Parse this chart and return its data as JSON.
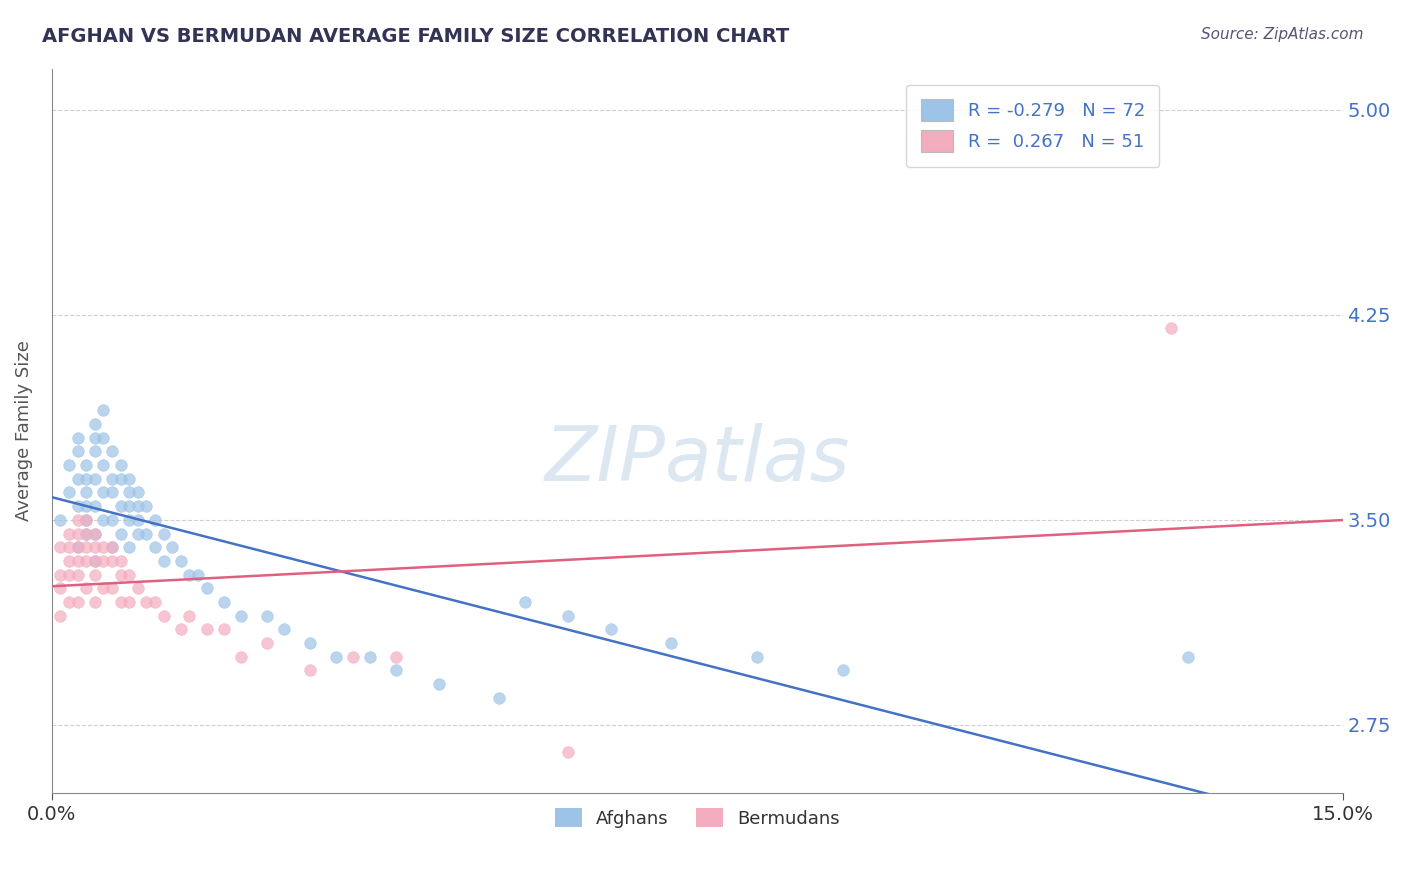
{
  "title": "AFGHAN VS BERMUDAN AVERAGE FAMILY SIZE CORRELATION CHART",
  "source_text": "Source: ZipAtlas.com",
  "ylabel": "Average Family Size",
  "xlim": [
    0.0,
    0.15
  ],
  "ylim": [
    2.5,
    5.15
  ],
  "yticks": [
    2.75,
    3.5,
    4.25,
    5.0
  ],
  "xticks": [
    0.0,
    0.15
  ],
  "xticklabels": [
    "0.0%",
    "15.0%"
  ],
  "background_color": "#ffffff",
  "grid_color": "#d0d0d0",
  "watermark": "ZIPatlas",
  "afghans_color": "#9dc3e6",
  "bermudans_color": "#f4acbf",
  "trend_afghan_color": "#4472c4",
  "trend_bermudan_color": "#e06080",
  "afghan_R": -0.279,
  "afghan_N": 72,
  "bermudan_R": 0.267,
  "bermudan_N": 51,
  "afghan_x": [
    0.001,
    0.002,
    0.002,
    0.003,
    0.003,
    0.003,
    0.003,
    0.003,
    0.004,
    0.004,
    0.004,
    0.004,
    0.004,
    0.004,
    0.005,
    0.005,
    0.005,
    0.005,
    0.005,
    0.005,
    0.005,
    0.006,
    0.006,
    0.006,
    0.006,
    0.006,
    0.007,
    0.007,
    0.007,
    0.007,
    0.007,
    0.008,
    0.008,
    0.008,
    0.008,
    0.009,
    0.009,
    0.009,
    0.009,
    0.009,
    0.01,
    0.01,
    0.01,
    0.01,
    0.011,
    0.011,
    0.012,
    0.012,
    0.013,
    0.013,
    0.014,
    0.015,
    0.016,
    0.017,
    0.018,
    0.02,
    0.022,
    0.025,
    0.027,
    0.03,
    0.033,
    0.037,
    0.04,
    0.045,
    0.052,
    0.055,
    0.06,
    0.065,
    0.072,
    0.082,
    0.092,
    0.132
  ],
  "afghan_y": [
    3.5,
    3.6,
    3.7,
    3.8,
    3.75,
    3.65,
    3.55,
    3.4,
    3.7,
    3.65,
    3.6,
    3.55,
    3.5,
    3.45,
    3.85,
    3.8,
    3.75,
    3.65,
    3.55,
    3.45,
    3.35,
    3.9,
    3.8,
    3.7,
    3.6,
    3.5,
    3.75,
    3.65,
    3.6,
    3.5,
    3.4,
    3.7,
    3.65,
    3.55,
    3.45,
    3.65,
    3.6,
    3.55,
    3.5,
    3.4,
    3.6,
    3.55,
    3.5,
    3.45,
    3.55,
    3.45,
    3.5,
    3.4,
    3.45,
    3.35,
    3.4,
    3.35,
    3.3,
    3.3,
    3.25,
    3.2,
    3.15,
    3.15,
    3.1,
    3.05,
    3.0,
    3.0,
    2.95,
    2.9,
    2.85,
    3.2,
    3.15,
    3.1,
    3.05,
    3.0,
    2.95,
    3.0
  ],
  "bermudan_x": [
    0.001,
    0.001,
    0.001,
    0.001,
    0.002,
    0.002,
    0.002,
    0.002,
    0.002,
    0.003,
    0.003,
    0.003,
    0.003,
    0.003,
    0.003,
    0.004,
    0.004,
    0.004,
    0.004,
    0.004,
    0.005,
    0.005,
    0.005,
    0.005,
    0.005,
    0.006,
    0.006,
    0.006,
    0.007,
    0.007,
    0.007,
    0.008,
    0.008,
    0.008,
    0.009,
    0.009,
    0.01,
    0.011,
    0.012,
    0.013,
    0.015,
    0.016,
    0.018,
    0.02,
    0.022,
    0.025,
    0.03,
    0.035,
    0.04,
    0.06,
    0.13
  ],
  "bermudan_y": [
    3.4,
    3.3,
    3.25,
    3.15,
    3.45,
    3.4,
    3.35,
    3.3,
    3.2,
    3.5,
    3.45,
    3.4,
    3.35,
    3.3,
    3.2,
    3.5,
    3.45,
    3.4,
    3.35,
    3.25,
    3.45,
    3.4,
    3.35,
    3.3,
    3.2,
    3.4,
    3.35,
    3.25,
    3.4,
    3.35,
    3.25,
    3.35,
    3.3,
    3.2,
    3.3,
    3.2,
    3.25,
    3.2,
    3.2,
    3.15,
    3.1,
    3.15,
    3.1,
    3.1,
    3.0,
    3.05,
    2.95,
    3.0,
    3.0,
    2.65,
    4.2
  ]
}
